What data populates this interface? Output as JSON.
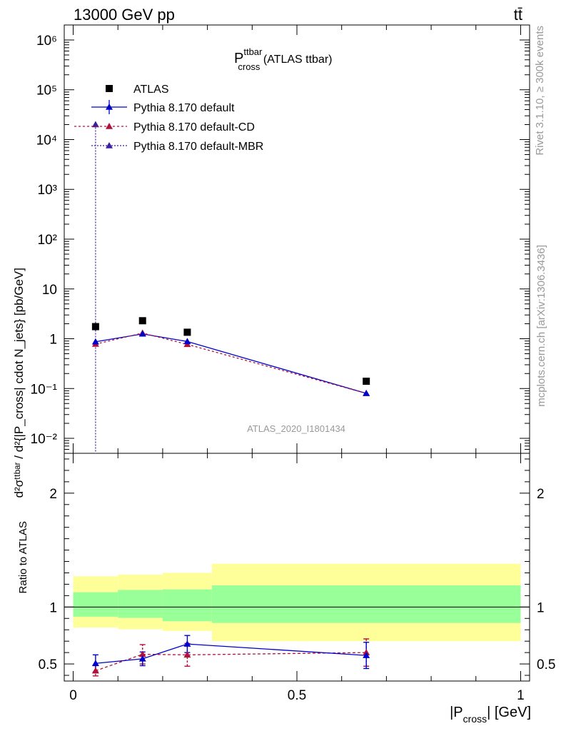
{
  "header": {
    "left": "13000 GeV pp",
    "right": "tt̄"
  },
  "side_labels": {
    "rivet": "Rivet 3.1.10, ≥ 300k events",
    "mcplots": "mcplots.cern.ch [arXiv:1306.3436]"
  },
  "watermark": "ATLAS_2020_I1801434",
  "title": {
    "main": "P",
    "sup": "ttbar",
    "sub": "cross",
    "rest": " (ATLAS ttbar)"
  },
  "ylabel_main": "d²σᵗᵗᵇᵃʳ / d²{|P_cross| cdot N_jets} [pb/GeV]",
  "ylabel_ratio": "Ratio to ATLAS",
  "xlabel": {
    "main": "|P",
    "sub": "cross",
    "rest": "| [GeV]"
  },
  "legend": [
    {
      "label": "ATLAS",
      "color": "#000000"
    },
    {
      "label": "Pythia 8.170 default",
      "color": "#0000cc"
    },
    {
      "label": "Pythia 8.170 default-CD",
      "color": "#b0103a"
    },
    {
      "label": "Pythia 8.170 default-MBR",
      "color": "#3a1fa0"
    }
  ],
  "colors": {
    "band_inner": "#99ff99",
    "band_outer": "#ffff99",
    "data": "#000000",
    "default": "#0000cc",
    "cd": "#b0103a",
    "mbr": "#3a1fa0"
  },
  "chart_data": {
    "type": "scatter",
    "x_axis": {
      "range": [
        -0.02,
        1.02
      ],
      "ticks": [
        0,
        0.5,
        1
      ],
      "tick_labels": [
        "0",
        "0.5",
        "1"
      ]
    },
    "main_panel": {
      "y_scale": "log",
      "ylim": [
        0.005,
        2000000
      ],
      "y_ticks": [
        0.01,
        0.1,
        1,
        10,
        100,
        1000,
        10000,
        100000,
        1000000
      ],
      "y_tick_labels": [
        "10⁻²",
        "10⁻¹",
        "1",
        "10",
        "10²",
        "10³",
        "10⁴",
        "10⁵",
        "10⁶"
      ],
      "series": [
        {
          "name": "ATLAS",
          "x": [
            0.05,
            0.155,
            0.255,
            0.655
          ],
          "y": [
            1.75,
            2.3,
            1.35,
            0.14
          ]
        },
        {
          "name": "Pythia 8.170 default",
          "x": [
            0.05,
            0.155,
            0.255,
            0.655
          ],
          "y": [
            0.87,
            1.25,
            0.88,
            0.08
          ]
        },
        {
          "name": "Pythia 8.170 default-CD",
          "x": [
            0.05,
            0.155,
            0.255,
            0.655
          ],
          "y": [
            0.78,
            1.3,
            0.77,
            0.08
          ]
        },
        {
          "name": "Pythia 8.170 default-MBR",
          "x": [
            0.05
          ],
          "y": [
            20000
          ],
          "yerr_low": 0.003
        }
      ]
    },
    "ratio_panel": {
      "ylim": [
        0.35,
        2.35
      ],
      "y_ticks": [
        0.5,
        1,
        2
      ],
      "y_tick_labels": [
        "0.5",
        "1",
        "2"
      ],
      "bands": [
        {
          "x0": 0.0,
          "x1": 0.1,
          "inner": [
            0.915,
            1.13
          ],
          "outer": [
            0.82,
            1.27
          ]
        },
        {
          "x0": 0.1,
          "x1": 0.2,
          "inner": [
            0.905,
            1.15
          ],
          "outer": [
            0.805,
            1.285
          ]
        },
        {
          "x0": 0.2,
          "x1": 0.31,
          "inner": [
            0.875,
            1.155
          ],
          "outer": [
            0.79,
            1.3
          ]
        },
        {
          "x0": 0.31,
          "x1": 1.0,
          "inner": [
            0.86,
            1.19
          ],
          "outer": [
            0.7,
            1.38
          ]
        }
      ],
      "series": [
        {
          "name": "Pythia 8.170 default",
          "x": [
            0.05,
            0.155,
            0.255,
            0.655
          ],
          "y": [
            0.505,
            0.545,
            0.675,
            0.575
          ],
          "err": [
            0.075,
            0.06,
            0.075,
            0.115
          ]
        },
        {
          "name": "Pythia 8.170 default-CD",
          "x": [
            0.05,
            0.155,
            0.255,
            0.655
          ],
          "y": [
            0.44,
            0.585,
            0.58,
            0.6
          ],
          "err": [
            0.045,
            0.085,
            0.1,
            0.12
          ]
        }
      ]
    }
  }
}
